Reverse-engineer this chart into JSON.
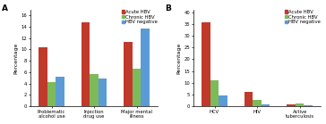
{
  "panel_A": {
    "categories": [
      "Problematic\nalcohol use",
      "Injection\ndrug use",
      "Major mental\nillness"
    ],
    "acute_HBV": [
      10.4,
      14.8,
      11.4
    ],
    "chronic_HBV": [
      4.2,
      5.7,
      6.6
    ],
    "HBV_negative": [
      5.2,
      4.9,
      13.7
    ],
    "ylim": [
      0,
      17
    ],
    "yticks": [
      0,
      2,
      4,
      6,
      8,
      10,
      12,
      14,
      16
    ],
    "ylabel": "Percentage",
    "label": "A"
  },
  "panel_B": {
    "categories": [
      "HCV",
      "HIV",
      "Active\ntuberculosis"
    ],
    "acute_HBV": [
      35.7,
      6.1,
      0.9
    ],
    "chronic_HBV": [
      10.9,
      2.8,
      1.3
    ],
    "HBV_negative": [
      4.7,
      0.9,
      0.5
    ],
    "ylim": [
      0,
      41
    ],
    "yticks": [
      0,
      5,
      10,
      15,
      20,
      25,
      30,
      35,
      40
    ],
    "ylabel": "Percentage",
    "label": "B"
  },
  "colors": {
    "acute_HBV": "#c0392b",
    "chronic_HBV": "#7dba5a",
    "HBV_negative": "#5b9bd5"
  },
  "legend_labels": [
    "Acute HBV",
    "Chronic HBV",
    "HBV negative"
  ],
  "bar_width": 0.2,
  "tick_fontsize": 3.8,
  "legend_fontsize": 3.8,
  "axis_label_fontsize": 4.5
}
